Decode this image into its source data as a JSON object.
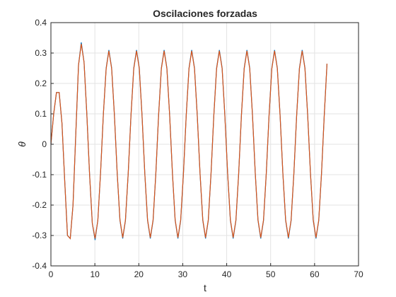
{
  "chart_data": {
    "type": "line",
    "title": "Oscilaciones forzadas",
    "x_label": "t",
    "y_label": "θ",
    "x": [
      0,
      0.63,
      1.26,
      1.88,
      2.51,
      3.14,
      3.77,
      4.4,
      5.03,
      5.65,
      6.28,
      6.91,
      7.54,
      8.17,
      8.8,
      9.42,
      10.05,
      10.68,
      11.31,
      11.94,
      12.57,
      13.19,
      13.82,
      14.45,
      15.08,
      15.71,
      16.34,
      16.96,
      17.59,
      18.22,
      18.85,
      19.48,
      20.11,
      20.73,
      21.36,
      21.99,
      22.62,
      23.25,
      23.88,
      24.5,
      25.13,
      25.76,
      26.39,
      27.02,
      27.65,
      28.27,
      28.9,
      29.53,
      30.16,
      30.79,
      31.42,
      32.04,
      32.67,
      33.3,
      33.93,
      34.56,
      35.19,
      35.81,
      36.44,
      37.07,
      37.7,
      38.33,
      38.96,
      39.58,
      40.21,
      40.84,
      41.47,
      42.1,
      42.73,
      43.35,
      43.98,
      44.61,
      45.24,
      45.87,
      46.5,
      47.12,
      47.75,
      48.38,
      49.01,
      49.64,
      50.27,
      50.89,
      51.52,
      52.15,
      52.78,
      53.41,
      54.04,
      54.66,
      55.29,
      55.92,
      56.55,
      57.18,
      57.81,
      58.43,
      59.06,
      59.69,
      60.32,
      60.95,
      61.58,
      62.2,
      62.83
    ],
    "series": [
      {
        "color": "#0072BD",
        "values": [
          0,
          0.1,
          0.17,
          0.17,
          0.07,
          -0.12,
          -0.3,
          -0.31,
          -0.2,
          0.03,
          0.26,
          0.335,
          0.27,
          0.1,
          -0.1,
          -0.26,
          -0.315,
          -0.25,
          -0.09,
          0.1,
          0.25,
          0.31,
          0.251,
          0.096,
          -0.095,
          -0.25,
          -0.31,
          -0.251,
          -0.096,
          0.095,
          0.25,
          0.31,
          0.251,
          0.096,
          -0.095,
          -0.25,
          -0.31,
          -0.251,
          -0.096,
          0.095,
          0.25,
          0.31,
          0.251,
          0.096,
          -0.095,
          -0.25,
          -0.31,
          -0.251,
          -0.096,
          0.095,
          0.25,
          0.31,
          0.251,
          0.096,
          -0.095,
          -0.25,
          -0.31,
          -0.251,
          -0.096,
          0.095,
          0.25,
          0.31,
          0.251,
          0.096,
          -0.095,
          -0.25,
          -0.31,
          -0.251,
          -0.096,
          0.095,
          0.25,
          0.31,
          0.251,
          0.096,
          -0.095,
          -0.25,
          -0.31,
          -0.251,
          -0.096,
          0.095,
          0.25,
          0.31,
          0.251,
          0.096,
          -0.095,
          -0.25,
          -0.31,
          -0.251,
          -0.096,
          0.095,
          0.25,
          0.31,
          0.251,
          0.096,
          -0.095,
          -0.25,
          -0.31,
          -0.251,
          -0.096,
          0.095,
          0.265
        ]
      },
      {
        "color": "#D95319",
        "values": [
          0,
          0.1,
          0.17,
          0.17,
          0.07,
          -0.12,
          -0.3,
          -0.31,
          -0.2,
          0.03,
          0.26,
          0.33,
          0.27,
          0.1,
          -0.1,
          -0.26,
          -0.31,
          -0.25,
          -0.09,
          0.1,
          0.248,
          0.307,
          0.249,
          0.095,
          -0.094,
          -0.248,
          -0.307,
          -0.249,
          -0.095,
          0.094,
          0.248,
          0.307,
          0.249,
          0.095,
          -0.094,
          -0.248,
          -0.307,
          -0.249,
          -0.095,
          0.094,
          0.248,
          0.307,
          0.249,
          0.095,
          -0.094,
          -0.248,
          -0.307,
          -0.249,
          -0.095,
          0.094,
          0.248,
          0.307,
          0.249,
          0.095,
          -0.094,
          -0.248,
          -0.307,
          -0.249,
          -0.095,
          0.094,
          0.248,
          0.307,
          0.249,
          0.095,
          -0.094,
          -0.248,
          -0.307,
          -0.249,
          -0.095,
          0.094,
          0.248,
          0.307,
          0.249,
          0.095,
          -0.094,
          -0.248,
          -0.307,
          -0.249,
          -0.095,
          0.094,
          0.248,
          0.307,
          0.249,
          0.095,
          -0.094,
          -0.248,
          -0.307,
          -0.249,
          -0.095,
          0.094,
          0.248,
          0.307,
          0.249,
          0.095,
          -0.094,
          -0.248,
          -0.307,
          -0.249,
          -0.095,
          0.094,
          0.265
        ]
      }
    ],
    "xlim": [
      0,
      70
    ],
    "xticks": [
      0,
      10,
      20,
      30,
      40,
      50,
      60,
      70
    ],
    "ylim": [
      -0.4,
      0.4
    ],
    "yticks": [
      -0.4,
      -0.3,
      -0.2,
      -0.1,
      0,
      0.1,
      0.2,
      0.3,
      0.4
    ],
    "grid": true
  }
}
